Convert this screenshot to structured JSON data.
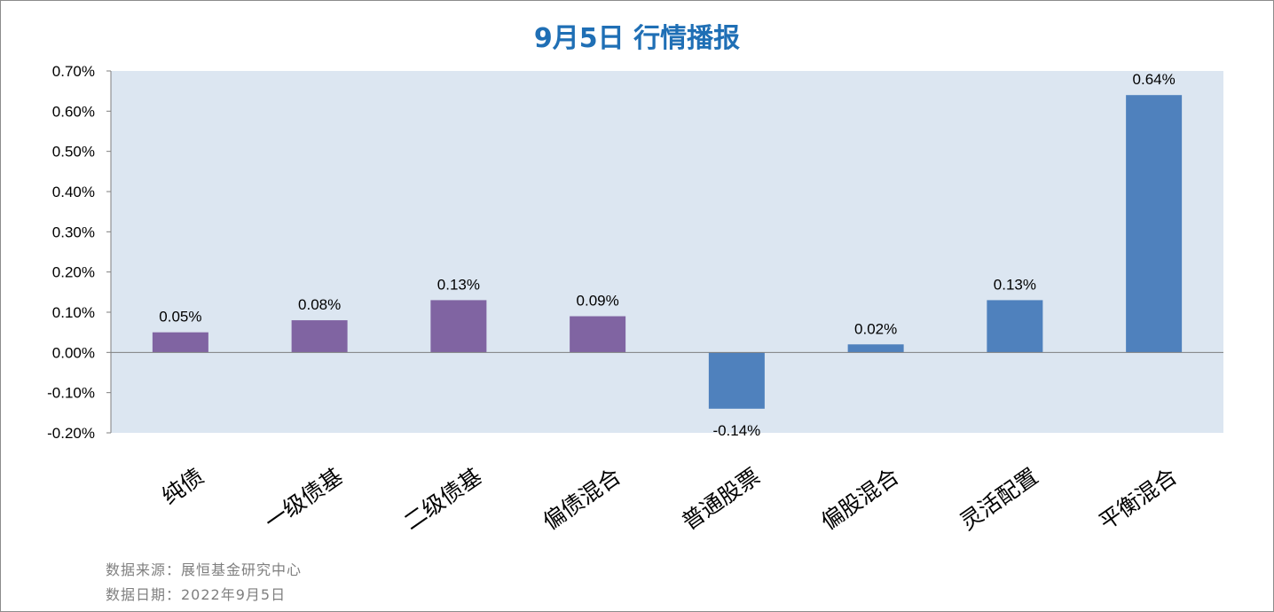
{
  "chart_data": {
    "type": "bar",
    "title": "9月5日  行情播报",
    "xlabel": "",
    "ylabel": "",
    "categories": [
      "纯债",
      "一级债基",
      "二级债基",
      "偏债混合",
      "普通股票",
      "偏股混合",
      "灵活配置",
      "平衡混合"
    ],
    "values": [
      0.05,
      0.08,
      0.13,
      0.09,
      -0.14,
      0.02,
      0.13,
      0.64
    ],
    "data_labels": [
      "0.05%",
      "0.08%",
      "0.13%",
      "0.09%",
      "-0.14%",
      "0.02%",
      "0.13%",
      "0.64%"
    ],
    "bar_colors": [
      "#8064a2",
      "#8064a2",
      "#8064a2",
      "#8064a2",
      "#4f81bd",
      "#4f81bd",
      "#4f81bd",
      "#4f81bd"
    ],
    "ylim": [
      -0.2,
      0.7
    ],
    "yticks": [
      0.7,
      0.6,
      0.5,
      0.4,
      0.3,
      0.2,
      0.1,
      0.0,
      -0.1,
      -0.2
    ],
    "ytick_labels": [
      "0.70%",
      "0.60%",
      "0.50%",
      "0.40%",
      "0.30%",
      "0.20%",
      "0.10%",
      "0.00%",
      "-0.10%",
      "-0.20%"
    ],
    "grid": false,
    "legend": "none",
    "plot_background": "#dce6f1"
  },
  "footer": {
    "source": "数据来源：展恒基金研究中心",
    "date": "数据日期：2022年9月5日"
  },
  "colors": {
    "title": "#1f6fb5",
    "footer_text": "#7f7f7f"
  }
}
